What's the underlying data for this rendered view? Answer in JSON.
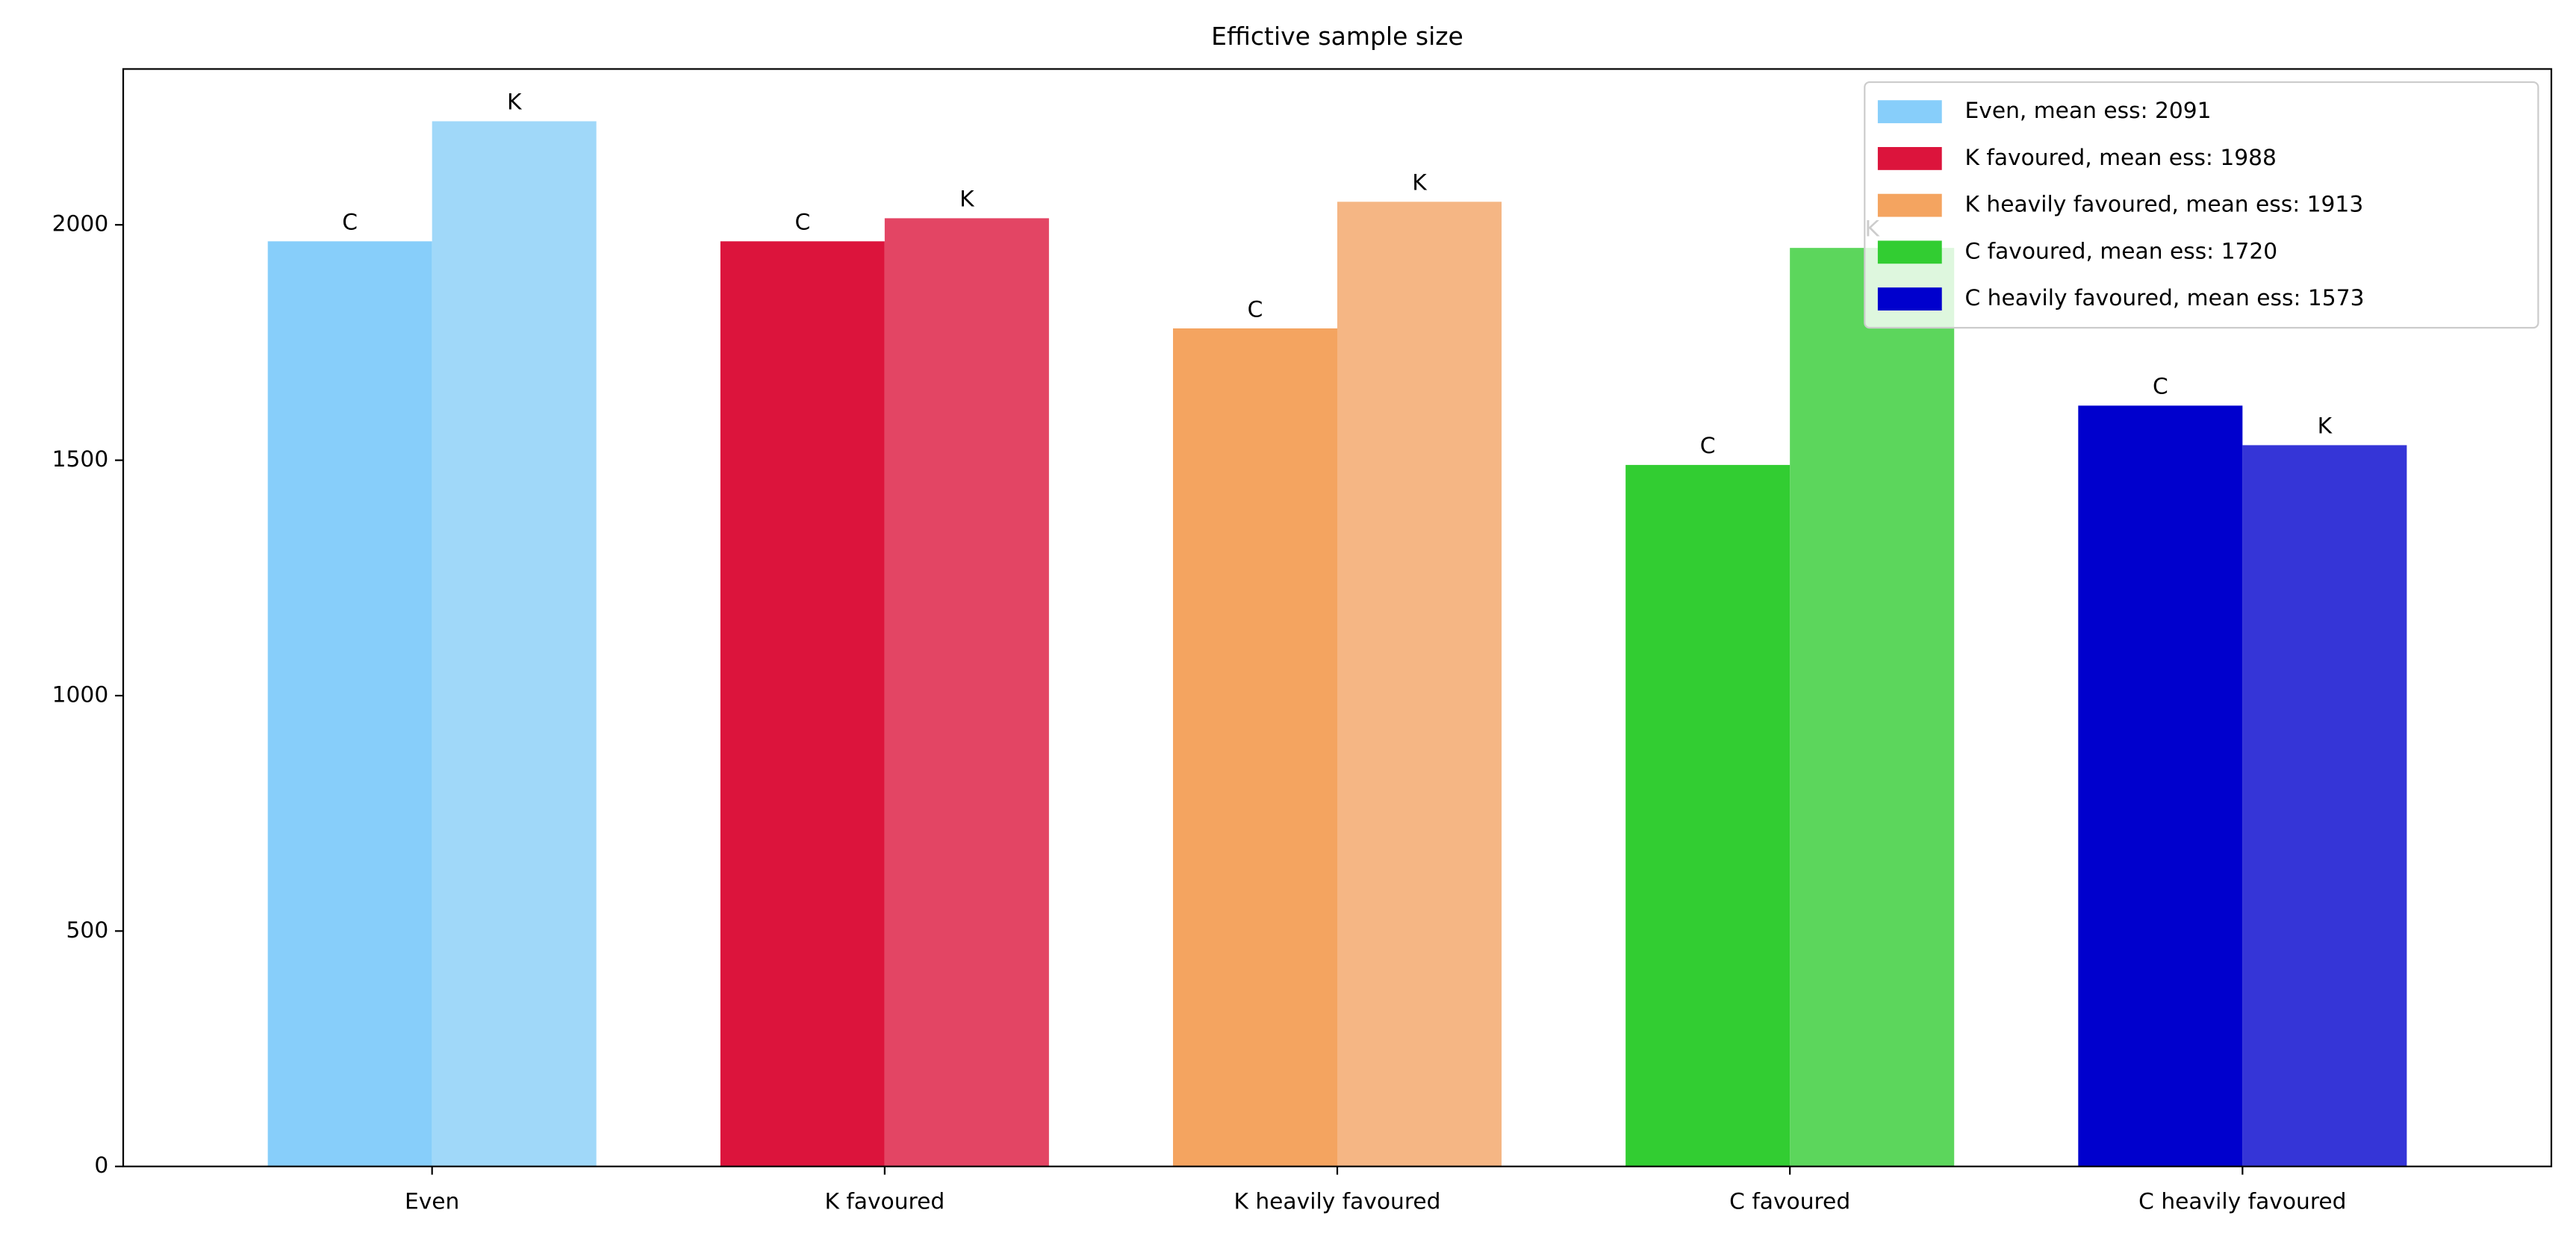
{
  "chart_data": {
    "type": "bar",
    "title": "Effictive sample size",
    "categories": [
      "Even",
      "K favoured",
      "K heavily favoured",
      "C favoured",
      "C heavily favoured"
    ],
    "series": [
      {
        "name": "C",
        "values": [
          1965,
          1965,
          1780,
          1490,
          1616
        ],
        "colors": [
          "#87cefa",
          "#dc143c",
          "#f4a460",
          "#32cd32",
          "#0000cd"
        ]
      },
      {
        "name": "K",
        "values": [
          2220,
          2014,
          2049,
          1951,
          1532
        ],
        "colors": [
          "#a0d8f9",
          "#e34564",
          "#f5b684",
          "#5cd65c",
          "#3535d7"
        ]
      }
    ],
    "legend": {
      "position": "upper right",
      "entries": [
        {
          "label": "Even, mean ess: 2091",
          "color": "#87cefa"
        },
        {
          "label": "K favoured, mean ess: 1988",
          "color": "#dc143c"
        },
        {
          "label": "K heavily favoured, mean ess: 1913",
          "color": "#f4a460"
        },
        {
          "label": "C favoured, mean ess: 1720",
          "color": "#32cd32"
        },
        {
          "label": "C heavily favoured, mean ess: 1573",
          "color": "#0000cd"
        }
      ]
    },
    "ylim": [
      0,
      2331
    ],
    "yticks": [
      0,
      500,
      1000,
      1500,
      2000
    ],
    "grid": false
  }
}
